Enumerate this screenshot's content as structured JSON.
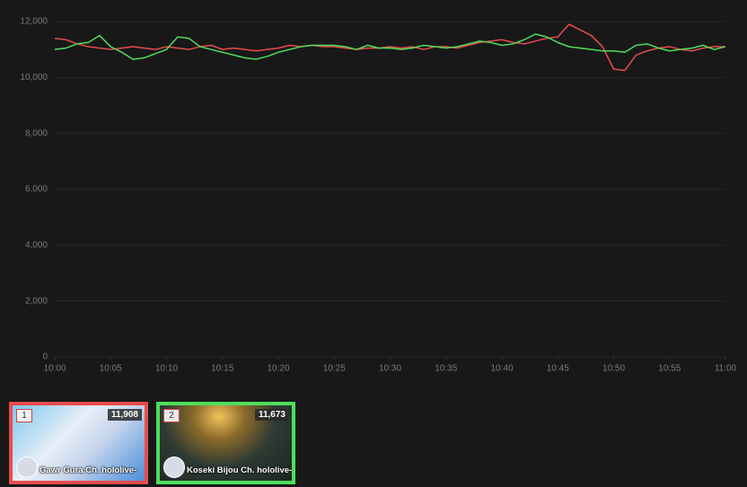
{
  "chart_data": {
    "type": "line",
    "x": [
      0,
      1,
      2,
      3,
      4,
      5,
      6,
      7,
      8,
      9,
      10,
      11,
      12,
      13,
      14,
      15,
      16,
      17,
      18,
      19,
      20,
      21,
      22,
      23,
      24,
      25,
      26,
      27,
      28,
      29,
      30,
      31,
      32,
      33,
      34,
      35,
      36,
      37,
      38,
      39,
      40,
      41,
      42,
      43,
      44,
      45,
      46,
      47,
      48,
      49,
      50,
      51,
      52,
      53,
      54,
      55,
      56,
      57,
      58,
      59,
      60
    ],
    "series": [
      {
        "color": "#e84c4c",
        "values": [
          11400,
          11350,
          11200,
          11100,
          11050,
          11000,
          11050,
          11100,
          11050,
          11000,
          11100,
          11050,
          11000,
          11100,
          11150,
          11000,
          11050,
          11000,
          10950,
          11000,
          11050,
          11150,
          11100,
          11150,
          11100,
          11100,
          11050,
          11000,
          11050,
          11050,
          11100,
          11050,
          11100,
          11000,
          11100,
          11100,
          11050,
          11150,
          11250,
          11300,
          11350,
          11250,
          11200,
          11300,
          11400,
          11450,
          11900,
          11700,
          11500,
          11100,
          10300,
          10250,
          10800,
          10950,
          11050,
          11100,
          11000,
          10950,
          11050,
          11100,
          11100
        ]
      },
      {
        "color": "#4fdd5c",
        "values": [
          11000,
          11050,
          11200,
          11250,
          11500,
          11100,
          10900,
          10650,
          10700,
          10850,
          11000,
          11450,
          11400,
          11100,
          11000,
          10900,
          10800,
          10700,
          10650,
          10750,
          10900,
          11000,
          11100,
          11150,
          11150,
          11150,
          11100,
          11000,
          11150,
          11050,
          11050,
          11000,
          11050,
          11150,
          11100,
          11050,
          11100,
          11200,
          11300,
          11250,
          11150,
          11200,
          11350,
          11550,
          11450,
          11250,
          11100,
          11050,
          11000,
          10950,
          10950,
          10900,
          11150,
          11200,
          11050,
          10950,
          11000,
          11050,
          11150,
          11000,
          11100
        ]
      }
    ],
    "xlim": [
      0,
      60
    ],
    "xticks": [
      {
        "value": 0,
        "label": "10:00"
      },
      {
        "value": 5,
        "label": "10:05"
      },
      {
        "value": 10,
        "label": "10:10"
      },
      {
        "value": 15,
        "label": "10:15"
      },
      {
        "value": 20,
        "label": "10:20"
      },
      {
        "value": 25,
        "label": "10:25"
      },
      {
        "value": 30,
        "label": "10:30"
      },
      {
        "value": 35,
        "label": "10:35"
      },
      {
        "value": 40,
        "label": "10:40"
      },
      {
        "value": 45,
        "label": "10:45"
      },
      {
        "value": 50,
        "label": "10:50"
      },
      {
        "value": 55,
        "label": "10:55"
      },
      {
        "value": 60,
        "label": "11:00"
      }
    ],
    "ylim": [
      0,
      12000
    ],
    "yticks": [
      0,
      {
        "value": 2000,
        "label": "2,000"
      },
      {
        "value": 4000,
        "label": "4,000"
      },
      {
        "value": 6000,
        "label": "6,000"
      },
      {
        "value": 8000,
        "label": "8,000"
      },
      {
        "value": 10000,
        "label": "10,000"
      },
      {
        "value": 12000,
        "label": "12,000"
      }
    ],
    "grid": true
  },
  "cards": [
    {
      "rank": "1",
      "viewers": "11,908",
      "name": "Gawr Gura Ch. hololive-"
    },
    {
      "rank": "2",
      "viewers": "11,673",
      "name": "Koseki Bijou Ch. hololive-"
    }
  ]
}
